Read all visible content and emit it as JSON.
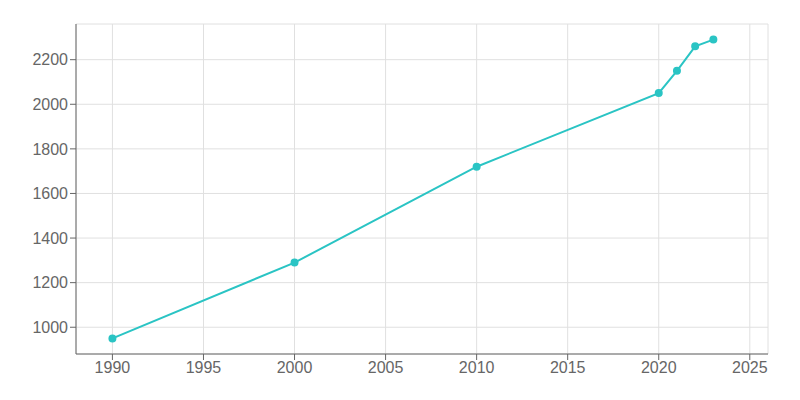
{
  "chart_data": {
    "type": "line",
    "x": [
      1990,
      2000,
      2010,
      2020,
      2021,
      2022,
      2023
    ],
    "values": [
      950,
      1290,
      1720,
      2050,
      2150,
      2260,
      2290
    ],
    "color": "#2ac4c4",
    "marker": "circle",
    "xlim": [
      1988,
      2026
    ],
    "ylim": [
      880,
      2360
    ],
    "xticks": [
      1990,
      1995,
      2000,
      2005,
      2010,
      2015,
      2020,
      2025
    ],
    "yticks": [
      1000,
      1200,
      1400,
      1600,
      1800,
      2000,
      2200
    ],
    "grid": true
  }
}
